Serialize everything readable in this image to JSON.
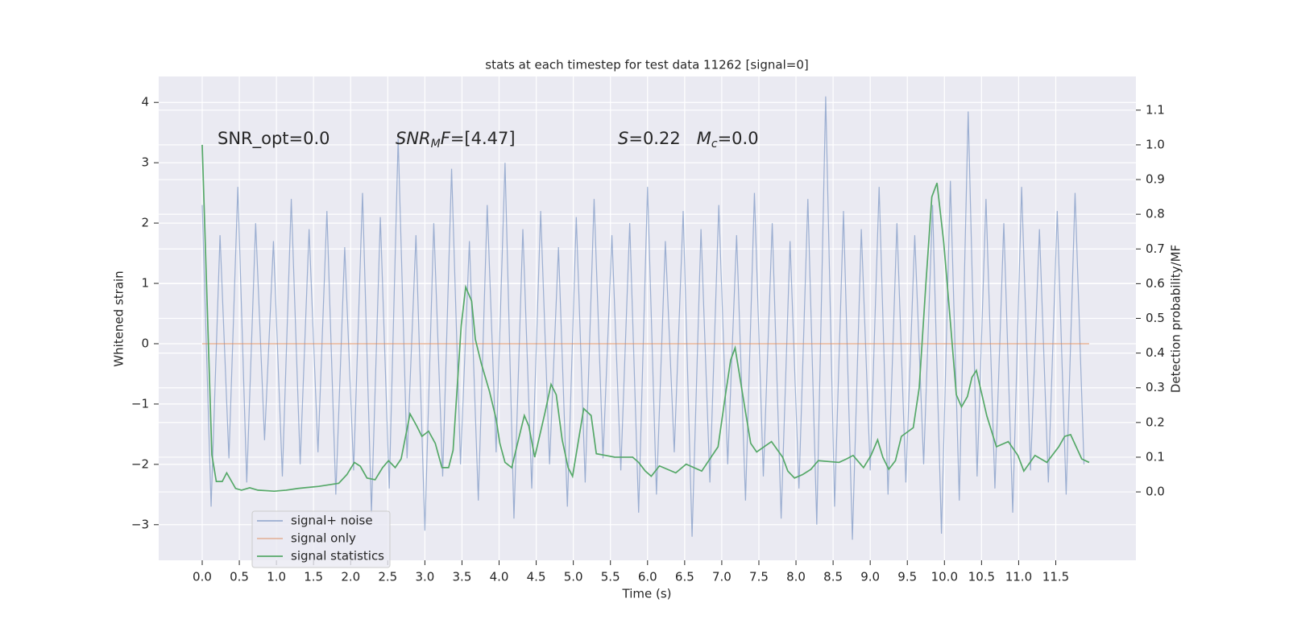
{
  "chart_data": {
    "type": "line",
    "title": "stats at each timestep for test data 11262 [signal=0]",
    "xlabel": "Time (s)",
    "ylabel": "Whitened strain",
    "y2label": "Detection probability/MF",
    "annotations": [
      [
        {
          "text": "SNR_opt=0.0"
        }
      ],
      [
        {
          "text": "SNR",
          "italic": true
        },
        {
          "text": "M",
          "italic": true,
          "sub": true
        },
        {
          "text": "F",
          "italic": true
        },
        {
          "text": "=[4.47]"
        }
      ],
      [
        {
          "text": "S",
          "italic": true
        },
        {
          "text": "=0.22   "
        },
        {
          "text": "M",
          "italic": true
        },
        {
          "text": "c",
          "italic": true,
          "sub": true
        },
        {
          "text": "=0.0"
        }
      ]
    ],
    "xlim": [
      -0.586,
      12.58
    ],
    "ylim": [
      -3.59,
      4.43
    ],
    "y2lim": [
      -0.197,
      1.197
    ],
    "xticks": [
      {
        "value": 0,
        "label": "0.0"
      },
      0.5,
      {
        "value": 1,
        "label": "1.0"
      },
      1.5,
      {
        "value": 2,
        "label": "2.0"
      },
      2.5,
      {
        "value": 3,
        "label": "3.0"
      },
      3.5,
      {
        "value": 4,
        "label": "4.0"
      },
      4.5,
      {
        "value": 5,
        "label": "5.0"
      },
      5.5,
      {
        "value": 6,
        "label": "6.0"
      },
      6.5,
      {
        "value": 7,
        "label": "7.0"
      },
      7.5,
      {
        "value": 8,
        "label": "8.0"
      },
      8.5,
      {
        "value": 9,
        "label": "9.0"
      },
      9.5,
      {
        "value": 10,
        "label": "10.0"
      },
      10.5,
      {
        "value": 11,
        "label": "11.0"
      },
      11.5
    ],
    "yticks": [
      {
        "value": -3,
        "label": "−3"
      },
      {
        "value": -2,
        "label": "−2"
      },
      {
        "value": -1,
        "label": "−1"
      },
      0,
      1,
      2,
      3,
      4
    ],
    "y2ticks": [
      {
        "value": 0,
        "label": "0.0"
      },
      0.1,
      0.2,
      0.3,
      0.4,
      0.5,
      0.6,
      0.7,
      0.8,
      0.9,
      {
        "value": 1,
        "label": "1.0"
      },
      1.1
    ],
    "grid": true,
    "legend": "lower left",
    "series": [
      {
        "name": "signal+ noise",
        "color": "#4c72b0",
        "x": [
          0,
          0.12,
          0.24,
          0.36,
          0.48,
          0.6,
          0.72,
          0.84,
          0.96,
          1.08,
          1.2,
          1.32,
          1.44,
          1.56,
          1.68,
          1.8,
          1.92,
          2.04,
          2.16,
          2.28,
          2.4,
          2.52,
          2.64,
          2.76,
          2.88,
          3,
          3.12,
          3.24,
          3.36,
          3.48,
          3.6,
          3.72,
          3.84,
          3.96,
          4.08,
          4.2,
          4.32,
          4.44,
          4.56,
          4.68,
          4.8,
          4.92,
          5.04,
          5.16,
          5.28,
          5.4,
          5.52,
          5.64,
          5.76,
          5.88,
          6,
          6.12,
          6.24,
          6.36,
          6.48,
          6.6,
          6.72,
          6.84,
          6.96,
          7.08,
          7.2,
          7.32,
          7.44,
          7.56,
          7.68,
          7.8,
          7.92,
          8.04,
          8.16,
          8.28,
          8.4,
          8.52,
          8.64,
          8.76,
          8.88,
          9,
          9.12,
          9.24,
          9.36,
          9.48,
          9.6,
          9.72,
          9.84,
          9.96,
          10.08,
          10.2,
          10.32,
          10.44,
          10.56,
          10.68,
          10.8,
          10.92,
          11.04,
          11.16,
          11.28,
          11.4,
          11.52,
          11.64,
          11.76,
          11.88
        ],
        "values": [
          2.3,
          -2.7,
          1.8,
          -1.9,
          2.6,
          -2.3,
          2.0,
          -1.6,
          1.7,
          -2.2,
          2.4,
          -2.0,
          1.9,
          -1.8,
          2.2,
          -2.5,
          1.6,
          -2.1,
          2.5,
          -2.8,
          2.1,
          -2.4,
          3.4,
          -1.9,
          1.8,
          -3.1,
          2.0,
          -2.2,
          2.9,
          -2.0,
          1.7,
          -2.6,
          2.3,
          -1.8,
          3.0,
          -2.9,
          1.9,
          -2.4,
          2.2,
          -2.0,
          1.6,
          -2.7,
          2.1,
          -2.3,
          2.4,
          -1.9,
          1.8,
          -2.1,
          2.0,
          -2.8,
          2.6,
          -2.5,
          1.7,
          -1.8,
          2.2,
          -3.2,
          1.9,
          -2.3,
          2.3,
          -2.0,
          1.8,
          -2.6,
          2.5,
          -2.2,
          2.0,
          -2.9,
          1.7,
          -2.4,
          2.4,
          -3.0,
          4.1,
          -2.7,
          2.2,
          -3.25,
          1.9,
          -2.1,
          2.6,
          -2.5,
          2.0,
          -2.3,
          1.8,
          -2.0,
          2.3,
          -3.15,
          2.7,
          -2.6,
          3.85,
          -2.2,
          2.4,
          -2.4,
          2.0,
          -2.8,
          2.6,
          -2.1,
          1.9,
          -2.3,
          2.2,
          -2.5,
          2.5,
          -2.0
        ]
      },
      {
        "name": "signal only",
        "color": "#dd8452",
        "x": [
          0,
          11.95
        ],
        "values": [
          0,
          0
        ]
      },
      {
        "name": "signal statistics",
        "color": "#55a868",
        "axis": "y2",
        "x": [
          0,
          0.13,
          0.19,
          0.27,
          0.33,
          0.45,
          0.53,
          0.64,
          0.75,
          0.97,
          1.13,
          1.29,
          1.57,
          1.84,
          1.95,
          2.05,
          2.13,
          2.22,
          2.33,
          2.43,
          2.51,
          2.6,
          2.68,
          2.8,
          2.89,
          2.96,
          3.05,
          3.14,
          3.23,
          3.32,
          3.38,
          3.49,
          3.55,
          3.63,
          3.68,
          3.76,
          3.87,
          3.96,
          4.01,
          4.08,
          4.17,
          4.26,
          4.34,
          4.4,
          4.48,
          4.62,
          4.7,
          4.77,
          4.85,
          4.93,
          4.99,
          5.14,
          5.24,
          5.31,
          5.56,
          5.8,
          5.88,
          5.97,
          6.05,
          6.16,
          6.38,
          6.52,
          6.73,
          6.95,
          7.05,
          7.12,
          7.18,
          7.32,
          7.39,
          7.47,
          7.67,
          7.82,
          7.89,
          7.98,
          8.09,
          8.2,
          8.3,
          8.58,
          8.68,
          8.77,
          8.91,
          9.01,
          9.1,
          9.17,
          9.25,
          9.34,
          9.42,
          9.58,
          9.66,
          9.75,
          9.83,
          9.9,
          9.99,
          10.08,
          10.16,
          10.23,
          10.31,
          10.37,
          10.43,
          10.57,
          10.7,
          10.86,
          10.99,
          11.07,
          11.22,
          11.38,
          11.54,
          11.62,
          11.7,
          11.85,
          11.95
        ],
        "values": [
          1.0,
          0.107,
          0.03,
          0.03,
          0.055,
          0.01,
          0.005,
          0.012,
          0.005,
          0.002,
          0.005,
          0.01,
          0.016,
          0.025,
          0.05,
          0.085,
          0.074,
          0.04,
          0.035,
          0.07,
          0.09,
          0.07,
          0.095,
          0.225,
          0.19,
          0.16,
          0.175,
          0.14,
          0.07,
          0.07,
          0.12,
          0.48,
          0.59,
          0.55,
          0.44,
          0.37,
          0.29,
          0.21,
          0.14,
          0.085,
          0.07,
          0.15,
          0.22,
          0.19,
          0.1,
          0.23,
          0.31,
          0.28,
          0.15,
          0.07,
          0.045,
          0.24,
          0.22,
          0.11,
          0.1,
          0.1,
          0.085,
          0.06,
          0.045,
          0.075,
          0.055,
          0.08,
          0.06,
          0.13,
          0.28,
          0.38,
          0.415,
          0.23,
          0.14,
          0.115,
          0.145,
          0.1,
          0.06,
          0.04,
          0.05,
          0.065,
          0.09,
          0.085,
          0.095,
          0.105,
          0.07,
          0.105,
          0.15,
          0.1,
          0.065,
          0.09,
          0.16,
          0.185,
          0.3,
          0.6,
          0.85,
          0.89,
          0.72,
          0.49,
          0.28,
          0.245,
          0.275,
          0.33,
          0.35,
          0.22,
          0.13,
          0.145,
          0.105,
          0.06,
          0.105,
          0.085,
          0.13,
          0.16,
          0.165,
          0.095,
          0.085
        ]
      }
    ]
  }
}
